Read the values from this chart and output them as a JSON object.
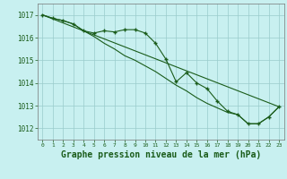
{
  "background_color": "#c8f0f0",
  "grid_color": "#99cccc",
  "line_color": "#1a5c1a",
  "marker_color": "#1a5c1a",
  "xlabel": "Graphe pression niveau de la mer (hPa)",
  "xlabel_fontsize": 7,
  "ylim": [
    1011.5,
    1017.5
  ],
  "xlim": [
    -0.5,
    23.5
  ],
  "yticks": [
    1012,
    1013,
    1014,
    1015,
    1016,
    1017
  ],
  "xticks": [
    0,
    1,
    2,
    3,
    4,
    5,
    6,
    7,
    8,
    9,
    10,
    11,
    12,
    13,
    14,
    15,
    16,
    17,
    18,
    19,
    20,
    21,
    22,
    23
  ],
  "series1_x": [
    0,
    1,
    2,
    3,
    4,
    5,
    6,
    7,
    8,
    9,
    10,
    11,
    12,
    13,
    14,
    15,
    16,
    17,
    18,
    19,
    20,
    21,
    22,
    23
  ],
  "series1_y": [
    1017.0,
    1016.85,
    1016.75,
    1016.6,
    1016.3,
    1016.2,
    1016.3,
    1016.25,
    1016.35,
    1016.35,
    1016.2,
    1015.75,
    1015.05,
    1014.05,
    1014.45,
    1014.0,
    1013.75,
    1013.2,
    1012.75,
    1012.6,
    1012.2,
    1012.2,
    1012.5,
    1012.95
  ],
  "series2_x": [
    0,
    1,
    2,
    3,
    4,
    5,
    6,
    7,
    8,
    9,
    10,
    11,
    12,
    13,
    14,
    15,
    16,
    17,
    18,
    19,
    20,
    21,
    22,
    23
  ],
  "series2_y": [
    1017.0,
    1016.85,
    1016.75,
    1016.6,
    1016.3,
    1016.05,
    1015.75,
    1015.5,
    1015.2,
    1015.0,
    1014.75,
    1014.5,
    1014.2,
    1013.9,
    1013.65,
    1013.35,
    1013.1,
    1012.9,
    1012.7,
    1012.6,
    1012.2,
    1012.2,
    1012.5,
    1012.95
  ],
  "series3_x": [
    0,
    23
  ],
  "series3_y": [
    1017.0,
    1012.95
  ]
}
